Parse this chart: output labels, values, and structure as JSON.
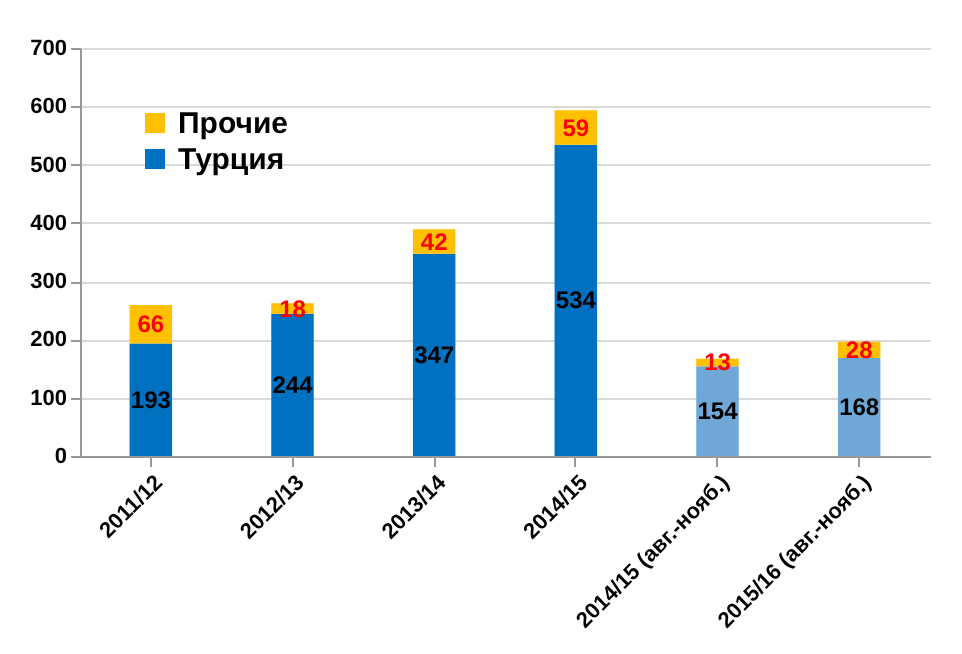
{
  "chart_data": {
    "type": "bar",
    "stacked": true,
    "categories": [
      "2011/12",
      "2012/13",
      "2013/14",
      "2014/15",
      "2014/15 (авг.-нояб.)",
      "2015/16 (авг.-нояб.)"
    ],
    "series": [
      {
        "name": "Турция",
        "color": "#0070c0",
        "colors": [
          "#0070c0",
          "#0070c0",
          "#0070c0",
          "#0070c0",
          "#6fa8d6",
          "#6fa8d6"
        ],
        "values": [
          193,
          244,
          347,
          534,
          154,
          168
        ]
      },
      {
        "name": "Прочие",
        "color": "#ffc000",
        "colors": [
          "#ffc000",
          "#ffc000",
          "#ffc000",
          "#ffc000",
          "#ffc000",
          "#ffc000"
        ],
        "values": [
          66,
          18,
          42,
          59,
          13,
          28
        ]
      }
    ],
    "ylim": [
      0,
      700
    ],
    "yticks": [
      0,
      100,
      200,
      300,
      400,
      500,
      600,
      700
    ],
    "grid": "y",
    "legend": "top left",
    "data_labels": true
  }
}
